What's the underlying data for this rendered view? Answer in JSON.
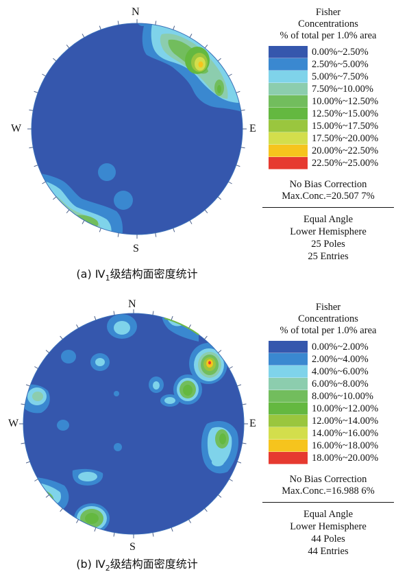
{
  "panels": [
    {
      "compass": {
        "n": "N",
        "s": "S",
        "e": "E",
        "w": "W"
      },
      "legend": {
        "title_lines": [
          "Fisher",
          "Concentrations",
          "% of total per 1.0% area"
        ],
        "bins": [
          {
            "label": "0.00%~2.50%",
            "color": "#3557ad"
          },
          {
            "label": "2.50%~5.00%",
            "color": "#3a88d0"
          },
          {
            "label": "5.00%~7.50%",
            "color": "#7fd3ea"
          },
          {
            "label": "7.50%~10.00%",
            "color": "#8ccdae"
          },
          {
            "label": "10.00%~12.50%",
            "color": "#72bd5d"
          },
          {
            "label": "12.50%~15.00%",
            "color": "#64b840"
          },
          {
            "label": "15.00%~17.50%",
            "color": "#9ac63e"
          },
          {
            "label": "17.50%~20.00%",
            "color": "#d3de4c"
          },
          {
            "label": "20.00%~22.50%",
            "color": "#f6c41d"
          },
          {
            "label": "22.50%~25.00%",
            "color": "#e63a30"
          }
        ],
        "bias": "No Bias Correction",
        "max_conc": "Max.Conc.=20.507 7%",
        "projection": "Equal Angle",
        "hemisphere": "Lower Hemisphere",
        "poles": "25 Poles",
        "entries": "25 Entries"
      },
      "caption": {
        "prefix": "(a) ",
        "numeral": "Ⅳ",
        "subscript": "1",
        "text": "级结构面密度统计"
      }
    },
    {
      "compass": {
        "n": "N",
        "s": "S",
        "e": "E",
        "w": "W"
      },
      "legend": {
        "title_lines": [
          "Fisher",
          "Concentrations",
          "% of total per 1.0% area"
        ],
        "bins": [
          {
            "label": "0.00%~2.00%",
            "color": "#3557ad"
          },
          {
            "label": "2.00%~4.00%",
            "color": "#3a88d0"
          },
          {
            "label": "4.00%~6.00%",
            "color": "#7fd3ea"
          },
          {
            "label": "6.00%~8.00%",
            "color": "#8ccdae"
          },
          {
            "label": "8.00%~10.00%",
            "color": "#72bd5d"
          },
          {
            "label": "10.00%~12.00%",
            "color": "#64b840"
          },
          {
            "label": "12.00%~14.00%",
            "color": "#9ac63e"
          },
          {
            "label": "14.00%~16.00%",
            "color": "#d3de4c"
          },
          {
            "label": "16.00%~18.00%",
            "color": "#f6c41d"
          },
          {
            "label": "18.00%~20.00%",
            "color": "#e63a30"
          }
        ],
        "bias": "No Bias Correction",
        "max_conc": "Max.Conc.=16.988 6%",
        "projection": "Equal Angle",
        "hemisphere": "Lower Hemisphere",
        "poles": "44 Poles",
        "entries": "44 Entries"
      },
      "caption": {
        "prefix": "(b) ",
        "numeral": "Ⅳ",
        "subscript": "2",
        "text": "级结构面密度统计"
      }
    }
  ]
}
